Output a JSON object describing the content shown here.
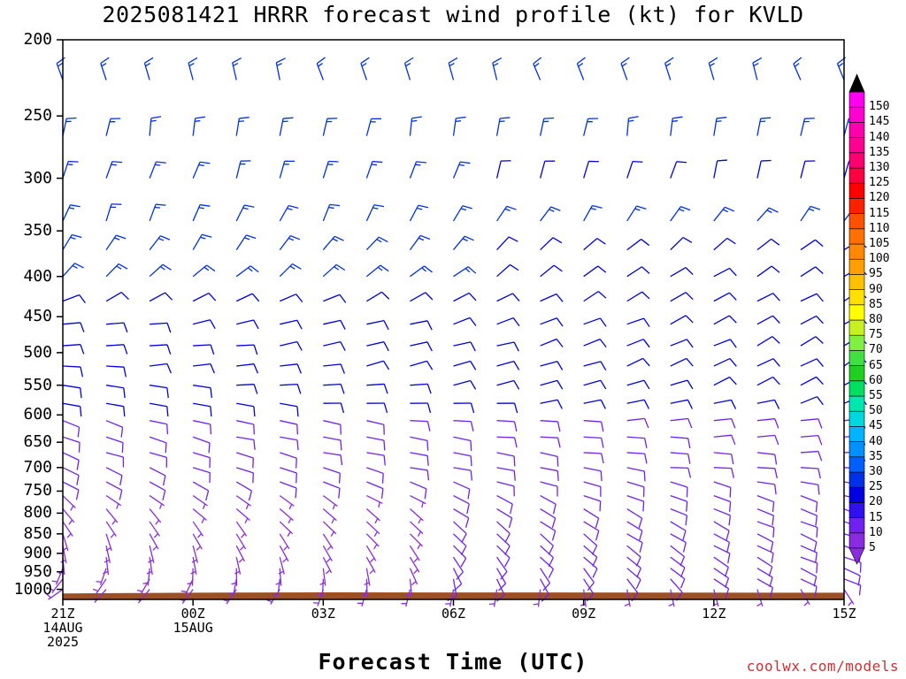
{
  "title": "2025081421 HRRR forecast wind profile (kt) for KVLD",
  "credit": "coolwx.com/models",
  "chart_data": {
    "type": "wind-barb-time-height",
    "title": "2025081421 HRRR forecast wind profile (kt) for KVLD",
    "xlabel": "Forecast Time (UTC)",
    "ylabel": "",
    "y_axis": {
      "scale": "log",
      "range": [
        200,
        1030
      ],
      "ticks": [
        200,
        250,
        300,
        350,
        400,
        450,
        500,
        550,
        600,
        650,
        700,
        750,
        800,
        850,
        900,
        950,
        1000
      ]
    },
    "x_axis": {
      "range_hours": [
        0,
        18
      ],
      "ticks": [
        {
          "hour": 0,
          "lines": [
            "21Z",
            "14AUG",
            "2025"
          ]
        },
        {
          "hour": 3,
          "lines": [
            "00Z",
            "15AUG"
          ]
        },
        {
          "hour": 6,
          "lines": [
            "03Z"
          ]
        },
        {
          "hour": 9,
          "lines": [
            "06Z"
          ]
        },
        {
          "hour": 12,
          "lines": [
            "09Z"
          ]
        },
        {
          "hour": 15,
          "lines": [
            "12Z"
          ]
        },
        {
          "hour": 18,
          "lines": [
            "15Z"
          ]
        }
      ]
    },
    "barb_hours": [
      0,
      1,
      2,
      3,
      4,
      5,
      6,
      7,
      8,
      9,
      10,
      11,
      12,
      13,
      14,
      15,
      16,
      17,
      18
    ],
    "barb_levels": [
      225,
      265,
      300,
      340,
      370,
      400,
      430,
      460,
      490,
      520,
      550,
      580,
      610,
      640,
      670,
      700,
      730,
      760,
      790,
      820,
      850,
      880,
      910,
      940,
      970,
      1000
    ],
    "profile": [
      {
        "p": 225,
        "early": {
          "dir": 345,
          "spd": 15
        },
        "late": {
          "dir": 340,
          "spd": 15
        }
      },
      {
        "p": 265,
        "early": {
          "dir": 10,
          "spd": 15
        },
        "late": {
          "dir": 10,
          "spd": 15
        }
      },
      {
        "p": 300,
        "early": {
          "dir": 20,
          "spd": 15
        },
        "late": {
          "dir": 15,
          "spd": 10
        }
      },
      {
        "p": 340,
        "early": {
          "dir": 20,
          "spd": 15
        },
        "late": {
          "dir": 40,
          "spd": 15
        }
      },
      {
        "p": 370,
        "early": {
          "dir": 30,
          "spd": 15
        },
        "late": {
          "dir": 55,
          "spd": 10
        }
      },
      {
        "p": 400,
        "early": {
          "dir": 45,
          "spd": 15
        },
        "late": {
          "dir": 60,
          "spd": 10
        }
      },
      {
        "p": 430,
        "early": {
          "dir": 65,
          "spd": 10
        },
        "late": {
          "dir": 60,
          "spd": 10
        }
      },
      {
        "p": 460,
        "early": {
          "dir": 85,
          "spd": 10
        },
        "late": {
          "dir": 60,
          "spd": 10
        }
      },
      {
        "p": 490,
        "early": {
          "dir": 90,
          "spd": 10
        },
        "late": {
          "dir": 60,
          "spd": 10
        }
      },
      {
        "p": 520,
        "early": {
          "dir": 90,
          "spd": 10
        },
        "late": {
          "dir": 60,
          "spd": 10
        }
      },
      {
        "p": 550,
        "early": {
          "dir": 100,
          "spd": 10
        },
        "late": {
          "dir": 60,
          "spd": 10
        }
      },
      {
        "p": 580,
        "early": {
          "dir": 105,
          "spd": 10
        },
        "late": {
          "dir": 70,
          "spd": 10
        }
      },
      {
        "p": 610,
        "early": {
          "dir": 110,
          "spd": 10
        },
        "late": {
          "dir": 80,
          "spd": 10
        }
      },
      {
        "p": 640,
        "early": {
          "dir": 110,
          "spd": 10
        },
        "late": {
          "dir": 85,
          "spd": 10
        }
      },
      {
        "p": 670,
        "early": {
          "dir": 110,
          "spd": 10
        },
        "late": {
          "dir": 90,
          "spd": 10
        }
      },
      {
        "p": 700,
        "early": {
          "dir": 115,
          "spd": 10
        },
        "late": {
          "dir": 90,
          "spd": 10
        }
      },
      {
        "p": 730,
        "early": {
          "dir": 120,
          "spd": 10
        },
        "late": {
          "dir": 100,
          "spd": 10
        }
      },
      {
        "p": 760,
        "early": {
          "dir": 130,
          "spd": 5
        },
        "late": {
          "dir": 105,
          "spd": 10
        }
      },
      {
        "p": 790,
        "early": {
          "dir": 140,
          "spd": 5
        },
        "late": {
          "dir": 110,
          "spd": 10
        }
      },
      {
        "p": 820,
        "early": {
          "dir": 150,
          "spd": 5
        },
        "late": {
          "dir": 110,
          "spd": 10
        }
      },
      {
        "p": 850,
        "early": {
          "dir": 160,
          "spd": 5
        },
        "late": {
          "dir": 110,
          "spd": 10
        }
      },
      {
        "p": 880,
        "early": {
          "dir": 170,
          "spd": 5
        },
        "late": {
          "dir": 110,
          "spd": 10
        }
      },
      {
        "p": 910,
        "early": {
          "dir": 180,
          "spd": 5
        },
        "late": {
          "dir": 110,
          "spd": 10
        }
      },
      {
        "p": 940,
        "early": {
          "dir": 200,
          "spd": 5
        },
        "late": {
          "dir": 110,
          "spd": 10
        }
      },
      {
        "p": 970,
        "early": {
          "dir": 220,
          "spd": 5
        },
        "late": {
          "dir": 110,
          "spd": 10
        }
      },
      {
        "p": 1000,
        "early": {
          "dir": 230,
          "spd": 5
        },
        "late": {
          "dir": 150,
          "spd": 5
        }
      }
    ],
    "surface_pressure": [
      {
        "hour": 0,
        "p": 1012
      },
      {
        "hour": 3,
        "p": 1010
      },
      {
        "hour": 6,
        "p": 1009
      },
      {
        "hour": 18,
        "p": 1010
      }
    ],
    "ground_color": "#9b5125",
    "colorbar": {
      "min": 0,
      "max": 155,
      "labels": [
        5,
        10,
        15,
        20,
        25,
        30,
        35,
        40,
        45,
        50,
        55,
        60,
        65,
        70,
        75,
        80,
        85,
        90,
        95,
        100,
        105,
        110,
        115,
        120,
        125,
        130,
        135,
        140,
        145,
        150
      ],
      "colors": [
        "#8a2be2",
        "#7020f0",
        "#3010f0",
        "#0000e0",
        "#0030e8",
        "#0060ff",
        "#0090ff",
        "#00b4ff",
        "#00d8e0",
        "#00e8b0",
        "#00e060",
        "#20d020",
        "#40e040",
        "#80f040",
        "#c8f020",
        "#ffff00",
        "#ffe000",
        "#ffc000",
        "#ffa000",
        "#ff8800",
        "#ff7000",
        "#ff5000",
        "#ff2000",
        "#ff0000",
        "#ff0040",
        "#ff0070",
        "#ff0090",
        "#ff00b0",
        "#ff00d0",
        "#ff00f0"
      ],
      "under_color": "#8a2be2",
      "over_color": "#000000"
    }
  }
}
